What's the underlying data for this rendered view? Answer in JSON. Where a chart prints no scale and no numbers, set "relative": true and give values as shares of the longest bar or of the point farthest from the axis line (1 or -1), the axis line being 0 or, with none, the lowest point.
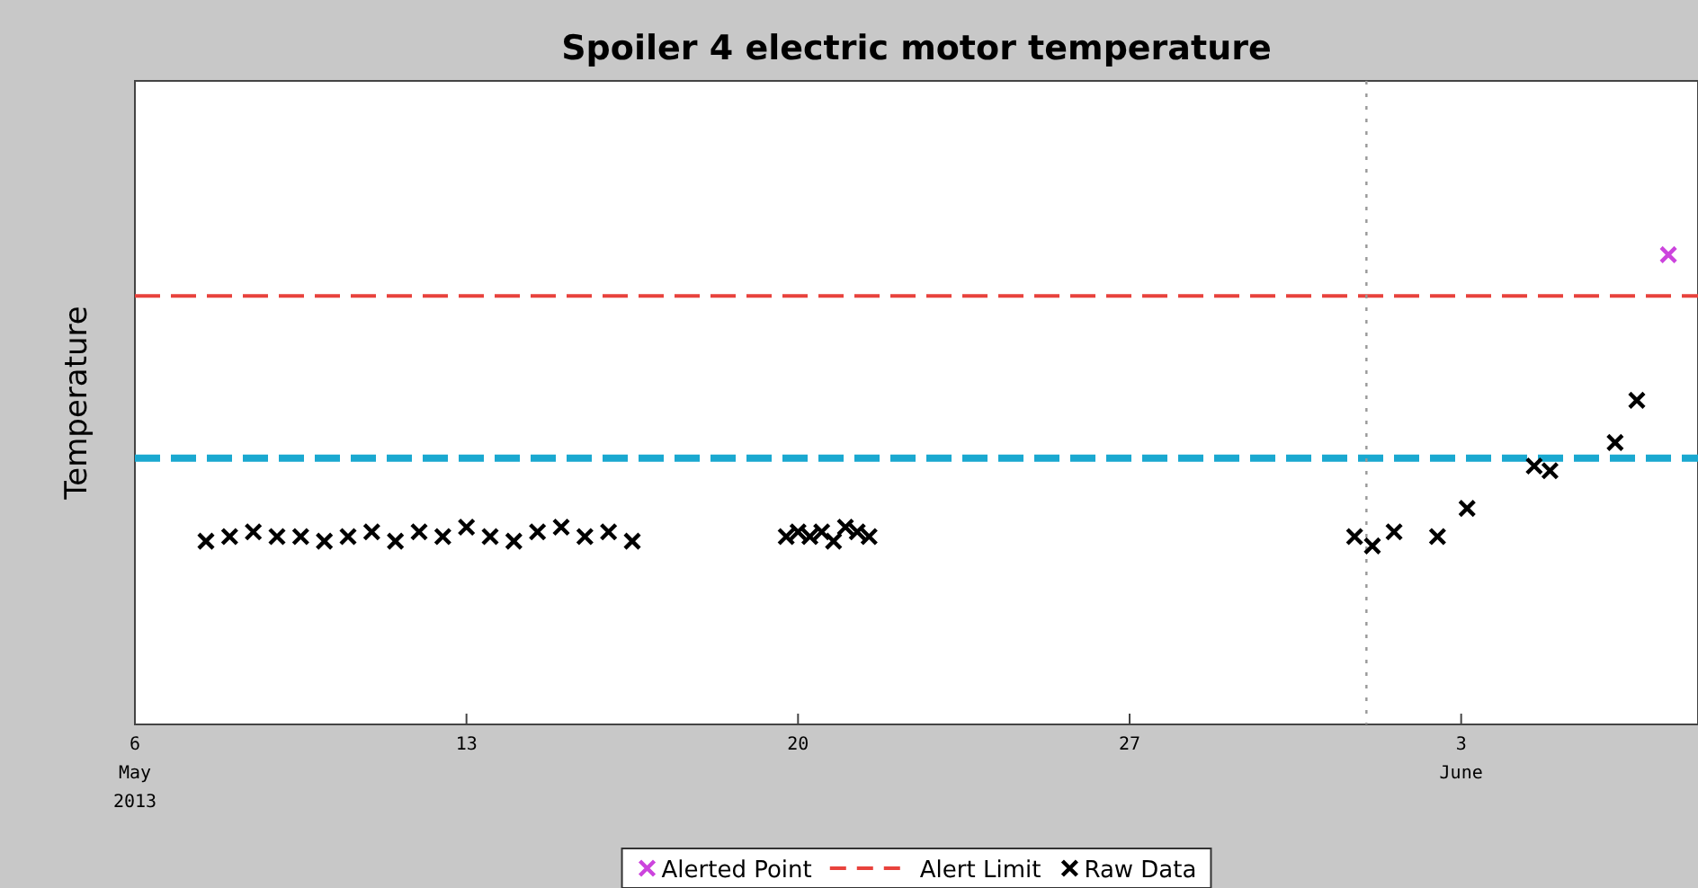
{
  "chart_data": {
    "type": "scatter",
    "title": "Spoiler 4 electric motor temperature",
    "ylabel": "Temperature",
    "relative": true,
    "marker": "cross",
    "legend": "bottom",
    "xlim": [
      "2013-05-06",
      "2013-06-08"
    ],
    "xticks": [
      {
        "value": "2013-05-06",
        "label": "6\nMay\n2013"
      },
      {
        "value": "2013-05-13",
        "label": "13"
      },
      {
        "value": "2013-05-20",
        "label": "20"
      },
      {
        "value": "2013-05-27",
        "label": "27"
      },
      {
        "value": "2013-06-03",
        "label": "3\nJune"
      }
    ],
    "ref_lines": [
      {
        "axis": "y",
        "value": 0.912,
        "label": "Alert Limit",
        "color": "#e8423c",
        "line_style": "dashed"
      },
      {
        "axis": "y",
        "value": 0.567,
        "color": "#1aa8d0",
        "line_style": "dashed"
      },
      {
        "axis": "x",
        "value": "2013-06-01",
        "color": "#999999",
        "line_style": "dotted"
      }
    ],
    "series": [
      {
        "name": "Alerted Point",
        "color": "#cc44dd",
        "x": [
          "2013-06-07T09:00"
        ],
        "values": [
          1.0
        ]
      },
      {
        "name": "Raw Data",
        "color": "#000000",
        "x": [
          "2013-05-07T12:00",
          "2013-05-08T00:00",
          "2013-05-08T12:00",
          "2013-05-09T00:00",
          "2013-05-09T12:00",
          "2013-05-10T00:00",
          "2013-05-10T12:00",
          "2013-05-11T00:00",
          "2013-05-11T12:00",
          "2013-05-12T00:00",
          "2013-05-12T12:00",
          "2013-05-13T00:00",
          "2013-05-13T12:00",
          "2013-05-14T00:00",
          "2013-05-14T12:00",
          "2013-05-15T00:00",
          "2013-05-15T12:00",
          "2013-05-16T00:00",
          "2013-05-16T12:00",
          "2013-05-19T18:00",
          "2013-05-20T00:00",
          "2013-05-20T06:00",
          "2013-05-20T12:00",
          "2013-05-20T18:00",
          "2013-05-21T00:00",
          "2013-05-21T06:00",
          "2013-05-21T12:00",
          "2013-05-31T18:00",
          "2013-06-01T03:00",
          "2013-06-01T14:00",
          "2013-06-02T12:00",
          "2013-06-03T03:00",
          "2013-06-04T13:00",
          "2013-06-04T21:00",
          "2013-06-06T06:00",
          "2013-06-06T17:00"
        ],
        "values": [
          0.39,
          0.4,
          0.41,
          0.4,
          0.4,
          0.39,
          0.4,
          0.41,
          0.39,
          0.41,
          0.4,
          0.42,
          0.4,
          0.39,
          0.41,
          0.42,
          0.4,
          0.41,
          0.39,
          0.4,
          0.41,
          0.4,
          0.41,
          0.39,
          0.42,
          0.41,
          0.4,
          0.4,
          0.38,
          0.41,
          0.4,
          0.46,
          0.55,
          0.54,
          0.6,
          0.69
        ]
      }
    ]
  }
}
